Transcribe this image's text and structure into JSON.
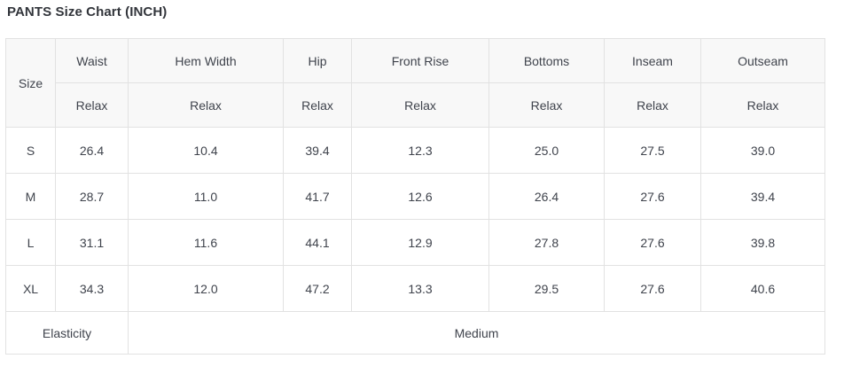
{
  "page": {
    "title": "PANTS Size Chart (INCH)"
  },
  "table": {
    "size_header": "Size",
    "columns": [
      {
        "label": "Waist",
        "fit": "Relax"
      },
      {
        "label": "Hem Width",
        "fit": "Relax"
      },
      {
        "label": "Hip",
        "fit": "Relax"
      },
      {
        "label": "Front Rise",
        "fit": "Relax"
      },
      {
        "label": "Bottoms",
        "fit": "Relax"
      },
      {
        "label": "Inseam",
        "fit": "Relax"
      },
      {
        "label": "Outseam",
        "fit": "Relax"
      }
    ],
    "rows": [
      {
        "size": "S",
        "values": [
          "26.4",
          "10.4",
          "39.4",
          "12.3",
          "25.0",
          "27.5",
          "39.0"
        ]
      },
      {
        "size": "M",
        "values": [
          "28.7",
          "11.0",
          "41.7",
          "12.6",
          "26.4",
          "27.6",
          "39.4"
        ]
      },
      {
        "size": "L",
        "values": [
          "31.1",
          "11.6",
          "44.1",
          "12.9",
          "27.8",
          "27.6",
          "39.8"
        ]
      },
      {
        "size": "XL",
        "values": [
          "34.3",
          "12.0",
          "47.2",
          "13.3",
          "29.5",
          "27.6",
          "40.6"
        ]
      }
    ],
    "footer": {
      "label": "Elasticity",
      "value": "Medium"
    }
  },
  "colors": {
    "header_bg": "#f8f8f8",
    "border": "#e2e2e2",
    "text": "#3f434c",
    "title_text": "#32353b"
  }
}
